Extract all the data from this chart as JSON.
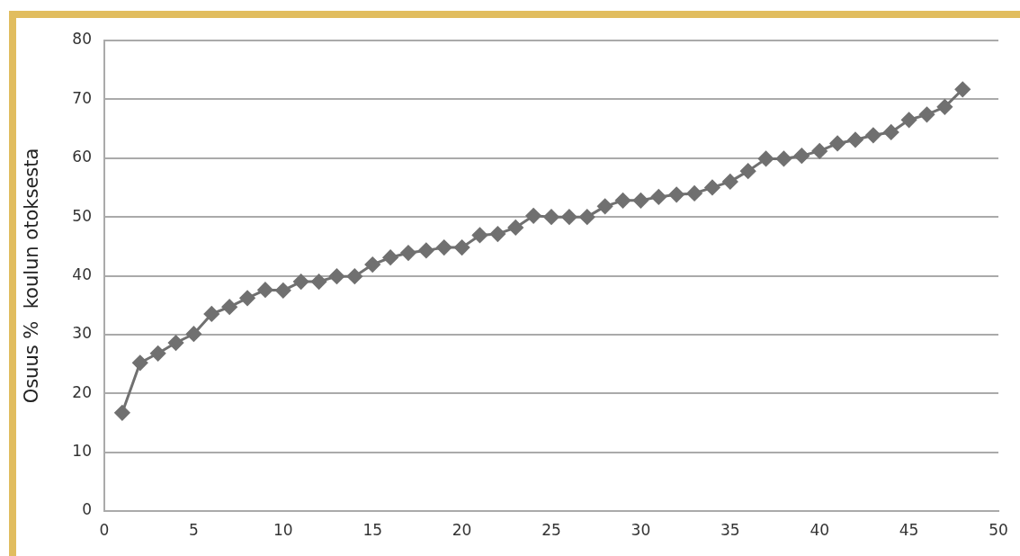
{
  "chart_data": {
    "type": "line",
    "ylabel": "Osuus %  koulun otoksesta",
    "x": [
      1,
      2,
      3,
      4,
      5,
      6,
      7,
      8,
      9,
      10,
      11,
      12,
      13,
      14,
      15,
      16,
      17,
      18,
      19,
      20,
      21,
      22,
      23,
      24,
      25,
      26,
      27,
      28,
      29,
      30,
      31,
      32,
      33,
      34,
      35,
      36,
      37,
      38,
      39,
      40,
      41,
      42,
      43,
      44,
      45,
      46,
      47,
      48
    ],
    "series": [
      {
        "color": "#707070",
        "values": [
          16.7,
          25.2,
          26.8,
          28.6,
          30.1,
          33.5,
          34.7,
          36.2,
          37.6,
          37.5,
          39.0,
          39.0,
          39.9,
          39.9,
          41.9,
          43.1,
          43.9,
          44.3,
          44.8,
          44.8,
          46.9,
          47.1,
          48.2,
          50.2,
          50.0,
          50.0,
          50.0,
          51.8,
          52.8,
          52.8,
          53.4,
          53.8,
          54.0,
          55.0,
          56.0,
          57.8,
          59.9,
          59.9,
          60.4,
          61.2,
          62.5,
          63.1,
          63.9,
          64.4,
          66.5,
          67.4,
          68.7,
          71.7
        ]
      }
    ],
    "xlim": [
      0,
      50
    ],
    "xticks": [
      0,
      5,
      10,
      15,
      20,
      25,
      30,
      35,
      40,
      45,
      50
    ],
    "ylim": [
      0,
      80
    ],
    "yticks": [
      0,
      10,
      20,
      30,
      40,
      50,
      60,
      70,
      80
    ],
    "grid": "y",
    "legend": false,
    "marker": "diamond",
    "line_style": "solid"
  }
}
